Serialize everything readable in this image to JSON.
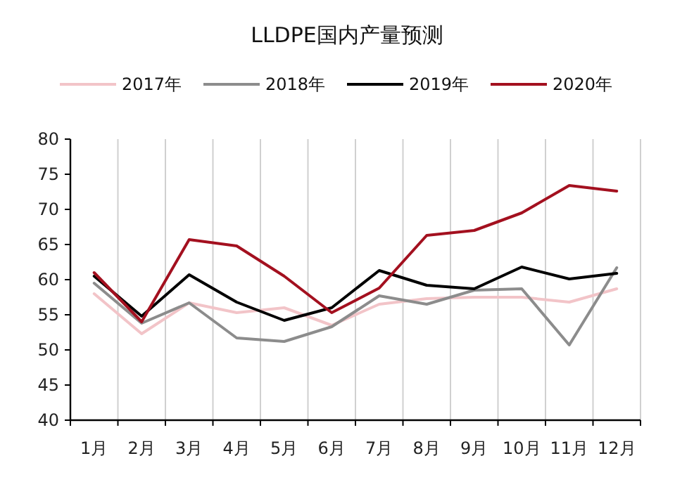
{
  "chart_data": {
    "type": "line",
    "title": "LLDPE国内产量预测",
    "categories": [
      "1月",
      "2月",
      "3月",
      "4月",
      "5月",
      "6月",
      "7月",
      "8月",
      "9月",
      "10月",
      "11月",
      "12月"
    ],
    "series": [
      {
        "name": "2017年",
        "color": "#f2c4c8",
        "values": [
          58,
          52.3,
          56.7,
          55.3,
          56,
          53.5,
          56.5,
          57.3,
          57.5,
          57.5,
          56.8,
          58.7
        ]
      },
      {
        "name": "2018年",
        "color": "#8c8c8c",
        "values": [
          59.5,
          53.8,
          56.7,
          51.7,
          51.2,
          53.3,
          57.7,
          56.5,
          58.5,
          58.7,
          50.7,
          61.7
        ]
      },
      {
        "name": "2019年",
        "color": "#000000",
        "values": [
          60.5,
          54.8,
          60.7,
          56.8,
          54.2,
          56,
          61.3,
          59.2,
          58.7,
          61.8,
          60.1,
          60.9
        ]
      },
      {
        "name": "2020年",
        "color": "#a3101f",
        "values": [
          61,
          54,
          65.7,
          64.8,
          60.5,
          55.3,
          58.8,
          66.3,
          67,
          69.5,
          73.4,
          72.6
        ]
      }
    ],
    "ylim": [
      40,
      80
    ],
    "yticks": [
      40,
      45,
      50,
      55,
      60,
      65,
      70,
      75,
      80
    ],
    "grid": "x",
    "legend": "top",
    "marker": "none",
    "line_style": "solid"
  }
}
